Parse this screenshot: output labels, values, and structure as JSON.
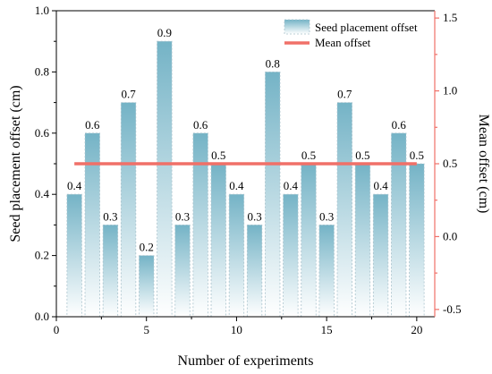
{
  "chart_data": {
    "type": "bar",
    "xlabel": "Number of experiments",
    "ylabel": "Seed placement offset (cm)",
    "y2label": "Mean offset (cm)",
    "xlim": [
      0,
      21
    ],
    "ylim": [
      0,
      1.0
    ],
    "y2lim": [
      -0.55,
      1.55
    ],
    "x_ticks": [
      0,
      5,
      10,
      15,
      20
    ],
    "y_ticks": [
      0.0,
      0.2,
      0.4,
      0.6,
      0.8,
      1.0
    ],
    "y2_ticks": [
      -0.5,
      0.0,
      0.5,
      1.0,
      1.5
    ],
    "categories": [
      1,
      2,
      3,
      4,
      5,
      6,
      7,
      8,
      9,
      10,
      11,
      12,
      13,
      14,
      15,
      16,
      17,
      18,
      19,
      20
    ],
    "series": [
      {
        "name": "Seed placement offset",
        "type": "bar",
        "axis": "left",
        "values": [
          0.4,
          0.6,
          0.3,
          0.7,
          0.2,
          0.9,
          0.3,
          0.6,
          0.5,
          0.4,
          0.3,
          0.8,
          0.4,
          0.5,
          0.3,
          0.7,
          0.5,
          0.4,
          0.6,
          0.5
        ],
        "labels": [
          "0.4",
          "0.6",
          "0.3",
          "0.7",
          "0.2",
          "0.9",
          "0.3",
          "0.6",
          "0.5",
          "0.4",
          "0.3",
          "0.8",
          "0.4",
          "0.5",
          "0.3",
          "0.7",
          "0.5",
          "0.4",
          "0.6",
          "0.5"
        ]
      },
      {
        "name": "Mean offset",
        "type": "line",
        "axis": "right",
        "x": [
          1,
          20
        ],
        "values": [
          0.5,
          0.5
        ]
      }
    ],
    "legend_position": "top-right",
    "grid": false,
    "colors": {
      "bar_top": "#74b3c6",
      "bar_bottom": "#ffffff",
      "mean_line": "#f07068",
      "right_axis": "#f07068",
      "left_axis": "#000000"
    }
  }
}
